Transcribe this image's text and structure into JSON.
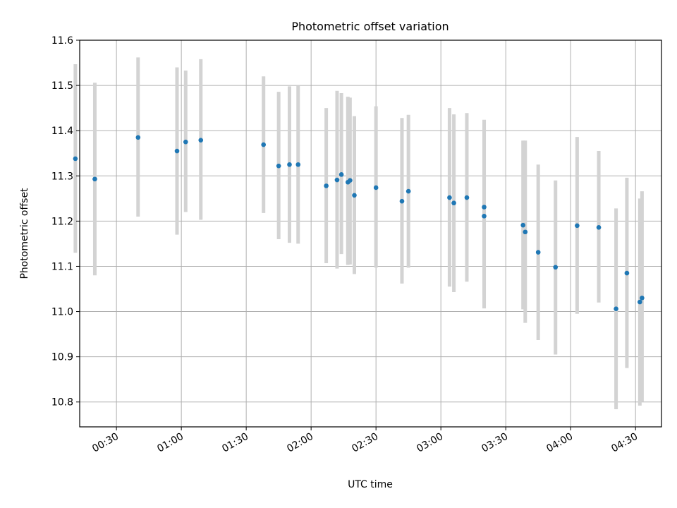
{
  "chart_data": {
    "type": "scatter",
    "title": "Photometric offset variation",
    "xlabel": "UTC time",
    "ylabel": "Photometric offset",
    "xlim": [
      "00:13",
      "04:42"
    ],
    "ylim": [
      10.745,
      11.6
    ],
    "x_ticks": [
      "00:30",
      "01:00",
      "01:30",
      "02:00",
      "02:30",
      "03:00",
      "03:30",
      "04:00",
      "04:30"
    ],
    "y_ticks": [
      "10.8",
      "10.9",
      "11.0",
      "11.1",
      "11.2",
      "11.3",
      "11.4",
      "11.5",
      "11.6"
    ],
    "grid": true,
    "error_bar_color": "#d3d3d3",
    "point_color": "#1f77b4",
    "series": [
      {
        "points": [
          {
            "x": "00:11",
            "y": 11.338,
            "low": 11.13,
            "high": 11.547
          },
          {
            "x": "00:20",
            "y": 11.293,
            "low": 11.08,
            "high": 11.506
          },
          {
            "x": "00:40",
            "y": 11.385,
            "low": 11.21,
            "high": 11.562
          },
          {
            "x": "00:58",
            "y": 11.355,
            "low": 11.17,
            "high": 11.54
          },
          {
            "x": "01:02",
            "y": 11.375,
            "low": 11.22,
            "high": 11.533
          },
          {
            "x": "01:09",
            "y": 11.379,
            "low": 11.203,
            "high": 11.558
          },
          {
            "x": "01:38",
            "y": 11.369,
            "low": 11.218,
            "high": 11.52
          },
          {
            "x": "01:45",
            "y": 11.322,
            "low": 11.16,
            "high": 11.486
          },
          {
            "x": "01:50",
            "y": 11.325,
            "low": 11.152,
            "high": 11.498
          },
          {
            "x": "01:54",
            "y": 11.325,
            "low": 11.15,
            "high": 11.5
          },
          {
            "x": "02:07",
            "y": 11.278,
            "low": 11.107,
            "high": 11.45
          },
          {
            "x": "02:12",
            "y": 11.291,
            "low": 11.095,
            "high": 11.488
          },
          {
            "x": "02:14",
            "y": 11.303,
            "low": 11.127,
            "high": 11.483
          },
          {
            "x": "02:17",
            "y": 11.286,
            "low": 11.103,
            "high": 11.475
          },
          {
            "x": "02:18",
            "y": 11.29,
            "low": 11.104,
            "high": 11.473
          },
          {
            "x": "02:20",
            "y": 11.257,
            "low": 11.083,
            "high": 11.432
          },
          {
            "x": "02:30",
            "y": 11.274,
            "low": 11.097,
            "high": 11.454
          },
          {
            "x": "02:42",
            "y": 11.244,
            "low": 11.062,
            "high": 11.428
          },
          {
            "x": "02:45",
            "y": 11.266,
            "low": 11.097,
            "high": 11.435
          },
          {
            "x": "03:04",
            "y": 11.252,
            "low": 11.055,
            "high": 11.45
          },
          {
            "x": "03:06",
            "y": 11.24,
            "low": 11.043,
            "high": 11.436
          },
          {
            "x": "03:12",
            "y": 11.252,
            "low": 11.066,
            "high": 11.439
          },
          {
            "x": "03:20",
            "y": 11.211,
            "low": 11.007,
            "high": 11.418
          },
          {
            "x": "03:20",
            "y": 11.231,
            "low": 11.038,
            "high": 11.424
          },
          {
            "x": "03:38",
            "y": 11.191,
            "low": 11.005,
            "high": 11.378
          },
          {
            "x": "03:39",
            "y": 11.176,
            "low": 10.975,
            "high": 11.378
          },
          {
            "x": "03:45",
            "y": 11.131,
            "low": 10.937,
            "high": 11.325
          },
          {
            "x": "03:53",
            "y": 11.098,
            "low": 10.905,
            "high": 11.29
          },
          {
            "x": "04:03",
            "y": 11.19,
            "low": 10.995,
            "high": 11.386
          },
          {
            "x": "04:13",
            "y": 11.186,
            "low": 11.02,
            "high": 11.355
          },
          {
            "x": "04:21",
            "y": 11.006,
            "low": 10.784,
            "high": 11.228
          },
          {
            "x": "04:26",
            "y": 11.085,
            "low": 10.875,
            "high": 11.296
          },
          {
            "x": "04:32",
            "y": 11.021,
            "low": 10.792,
            "high": 11.25
          },
          {
            "x": "04:33",
            "y": 11.03,
            "low": 10.8,
            "high": 11.266
          }
        ]
      }
    ]
  }
}
